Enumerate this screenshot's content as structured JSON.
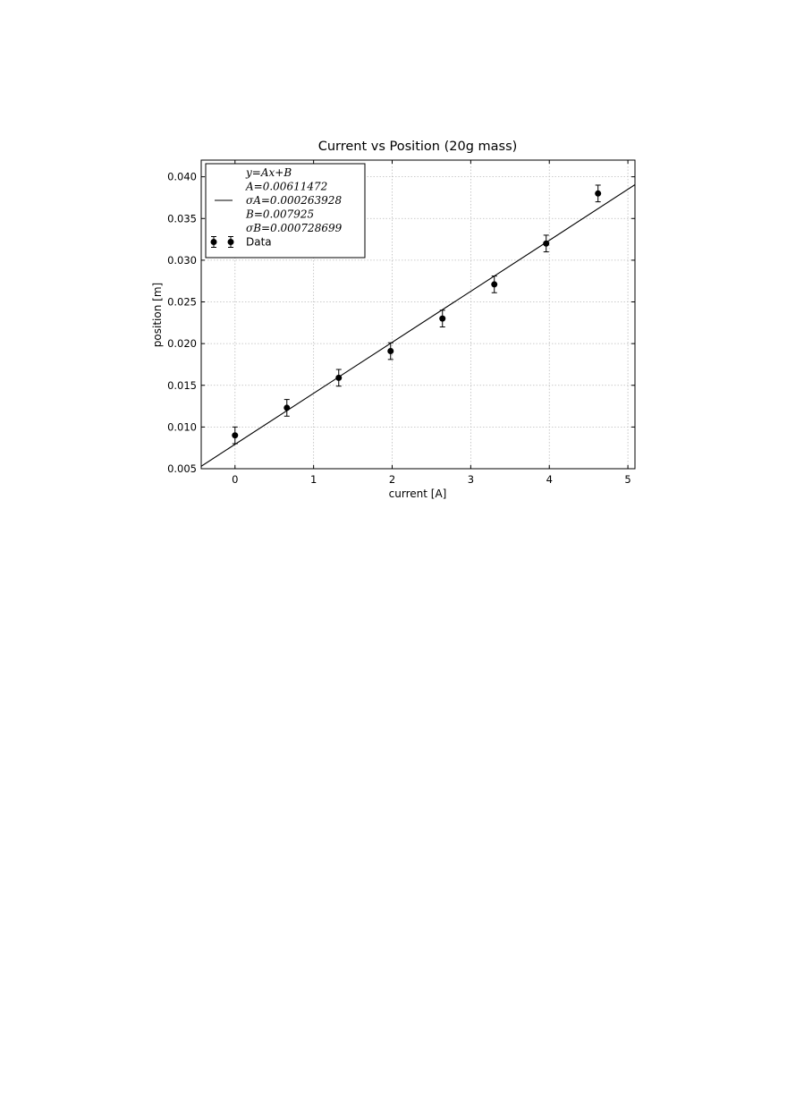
{
  "chart_data": {
    "type": "errorbar",
    "title": "Current vs Position (20g mass)",
    "x_label": "current [A]",
    "y_label": "position [m]",
    "xlim": [
      -0.43,
      5.09
    ],
    "ylim": [
      0.005,
      0.042
    ],
    "xticks": [
      0,
      1,
      2,
      3,
      4,
      5
    ],
    "yticks": [
      0.005,
      {
        "value": 0.01,
        "label": "0.010"
      },
      0.015,
      {
        "value": 0.02,
        "label": "0.020"
      },
      0.025,
      {
        "value": 0.03,
        "label": "0.030"
      },
      0.035,
      {
        "value": 0.04,
        "label": "0.040"
      }
    ],
    "grid": true,
    "legend": "upper left",
    "series": [
      {
        "name": [
          "y=Ax+B",
          "A=0.00611472",
          "σA=0.000263928",
          "B=0.007925",
          "σB=0.000728699"
        ],
        "type": "line",
        "color": "#000000",
        "x": [
          -0.43,
          5.09
        ],
        "values": [
          0.005296,
          0.039049
        ]
      },
      {
        "name": "Data",
        "type": "errorbar",
        "color": "#000000",
        "x": [
          0,
          0.66,
          1.32,
          1.98,
          2.64,
          3.3,
          3.96,
          4.62
        ],
        "values": [
          0.009,
          0.0123,
          0.0159,
          0.0191,
          0.023,
          0.0271,
          0.032,
          0.038
        ],
        "errors": [
          0.001,
          0.001,
          0.001,
          0.001,
          0.001,
          0.001,
          0.001,
          0.001
        ]
      }
    ]
  }
}
